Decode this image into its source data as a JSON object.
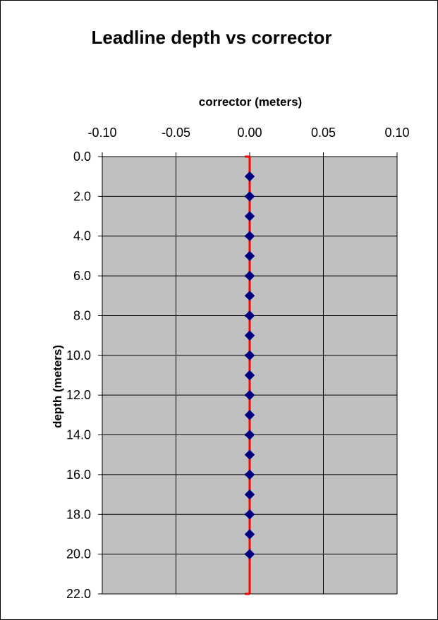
{
  "chart_data": {
    "type": "scatter",
    "title": "Leadline depth vs corrector",
    "xlabel": "corrector (meters)",
    "ylabel": "depth (meters)",
    "x_axis_position": "top",
    "y_axis_reversed": true,
    "xlim": [
      -0.1,
      0.1
    ],
    "ylim": [
      0.0,
      22.0
    ],
    "x_ticks": [
      "-0.10",
      "-0.05",
      "0.00",
      "0.05",
      "0.10"
    ],
    "y_ticks": [
      "0.0",
      "2.0",
      "4.0",
      "6.0",
      "8.0",
      "10.0",
      "12.0",
      "14.0",
      "16.0",
      "18.0",
      "20.0",
      "22.0"
    ],
    "grid": true,
    "plot_background": "#c0c0c0",
    "series": [
      {
        "type": "line",
        "color": "#ff0000",
        "points": [
          [
            0.0,
            0.0
          ],
          [
            0.0,
            22.0
          ]
        ],
        "tick_marks_at": [
          0,
          2,
          4,
          6,
          8,
          10,
          12,
          14,
          16,
          18,
          20
        ]
      },
      {
        "type": "scatter",
        "color": "#000080",
        "marker": "diamond",
        "points": [
          [
            0.0,
            1
          ],
          [
            0.0,
            2
          ],
          [
            0.0,
            3
          ],
          [
            0.0,
            4
          ],
          [
            0.0,
            5
          ],
          [
            0.0,
            6
          ],
          [
            0.0,
            7
          ],
          [
            0.0,
            8
          ],
          [
            0.0,
            9
          ],
          [
            0.0,
            10
          ],
          [
            0.0,
            11
          ],
          [
            0.0,
            12
          ],
          [
            0.0,
            13
          ],
          [
            0.0,
            14
          ],
          [
            0.0,
            15
          ],
          [
            0.0,
            16
          ],
          [
            0.0,
            17
          ],
          [
            0.0,
            18
          ],
          [
            0.0,
            19
          ],
          [
            0.0,
            20
          ]
        ]
      }
    ]
  }
}
